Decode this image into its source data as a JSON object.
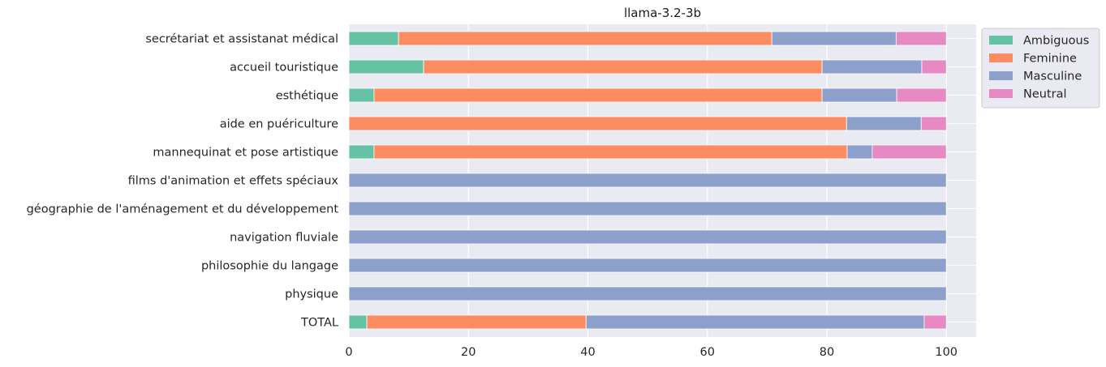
{
  "chart_data": {
    "type": "bar",
    "orientation": "horizontal",
    "stacked": true,
    "title": "llama-3.2-3b",
    "xlabel": "",
    "ylabel": "",
    "xlim": [
      0,
      105
    ],
    "xticks": [
      0,
      20,
      40,
      60,
      80,
      100
    ],
    "grid": true,
    "legend_position": "top-right, outside plot",
    "categories": [
      "secrétariat et assistanat médical",
      "accueil touristique",
      "esthétique",
      "aide en puériculture",
      "mannequinat et pose artistique",
      "films d'animation et effets spéciaux",
      "géographie de l'aménagement et du développement",
      "navigation fluviale",
      "philosophie du langage",
      "physique",
      "TOTAL"
    ],
    "series": [
      {
        "name": "Ambiguous",
        "color": "#66c2a5",
        "values": [
          8.3,
          12.5,
          4.2,
          0,
          4.2,
          0,
          0,
          0,
          0,
          0,
          3.0
        ]
      },
      {
        "name": "Feminine",
        "color": "#fc8d62",
        "values": [
          62.5,
          66.7,
          75.0,
          83.3,
          79.2,
          0,
          0,
          0,
          0,
          0,
          36.7
        ]
      },
      {
        "name": "Masculine",
        "color": "#8da0cb",
        "values": [
          20.8,
          16.7,
          12.5,
          12.5,
          4.2,
          100,
          100,
          100,
          100,
          100,
          56.6
        ]
      },
      {
        "name": "Neutral",
        "color": "#e78ac3",
        "values": [
          8.4,
          4.1,
          8.3,
          4.2,
          12.4,
          0,
          0,
          0,
          0,
          0,
          3.7
        ]
      }
    ]
  }
}
